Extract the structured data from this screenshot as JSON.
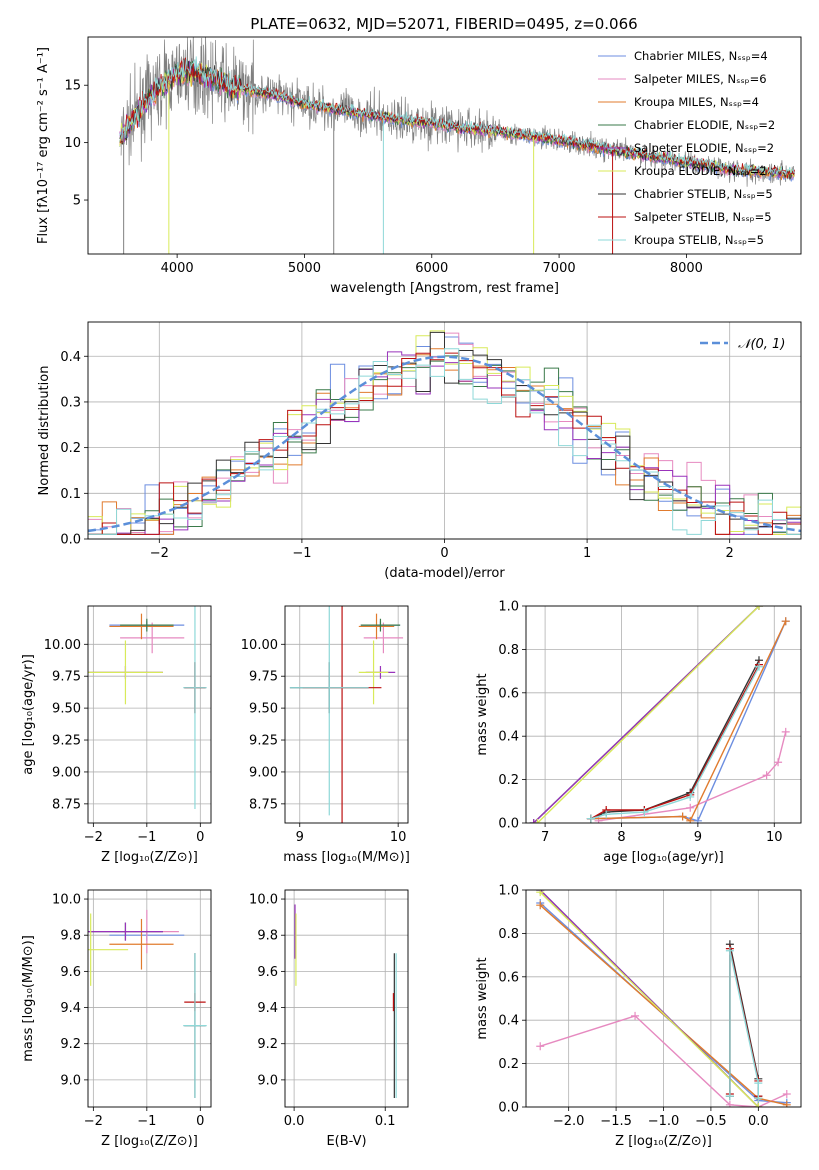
{
  "figure": {
    "title": "PLATE=0632, MJD=52071, FIBERID=0495, z=0.066"
  },
  "chart_data": [
    {
      "id": "spectrum",
      "type": "line",
      "xlabel": "wavelength [Angstrom, rest frame]",
      "ylabel": "Flux [fλ10⁻¹⁷ erg cm⁻² s⁻¹ A⁻¹]",
      "xlim": [
        3300,
        8900
      ],
      "ylim": [
        0.3,
        19.2
      ],
      "xticks": [
        4000,
        5000,
        6000,
        7000,
        8000
      ],
      "yticks": [
        5,
        10,
        15
      ],
      "grid": false,
      "legend_position": "top-right",
      "data_color": "#808080",
      "series": [
        {
          "name": "Chabrier MILES, Nₛₛₚ=4",
          "color": "#6c8ee0"
        },
        {
          "name": "Salpeter MILES, Nₛₛₚ=6",
          "color": "#e68ac0"
        },
        {
          "name": "Kroupa MILES, Nₛₛₚ=4",
          "color": "#e07b2e"
        },
        {
          "name": "Chabrier ELODIE, Nₛₛₚ=2",
          "color": "#3a7a4a"
        },
        {
          "name": "Salpeter ELODIE, Nₛₛₚ=2",
          "color": "#9933bb"
        },
        {
          "name": "Kroupa ELODIE, Nₛₛₚ=2",
          "color": "#d8ea5a"
        },
        {
          "name": "Chabrier STELIB, Nₛₛₚ=5",
          "color": "#333333"
        },
        {
          "name": "Salpeter STELIB, Nₛₛₚ=5",
          "color": "#bb1111"
        },
        {
          "name": "Kroupa STELIB, Nₛₛₚ=5",
          "color": "#8ed8d8"
        }
      ],
      "model_curve": {
        "x": [
          3550,
          3600,
          3700,
          3800,
          3900,
          4000,
          4100,
          4200,
          4300,
          4400,
          4500,
          4700,
          4900,
          5000,
          5200,
          5500,
          5800,
          6000,
          6200,
          6500,
          6800,
          7000,
          7300,
          7600,
          8000,
          8400,
          8800
        ],
        "y": [
          10.3,
          11.2,
          12.8,
          14.2,
          15.2,
          16.0,
          16.2,
          15.8,
          15.5,
          15.0,
          14.7,
          14.3,
          13.7,
          13.4,
          13.0,
          12.4,
          11.9,
          11.7,
          11.3,
          11.0,
          10.5,
          10.2,
          9.6,
          9.0,
          8.3,
          7.6,
          7.3
        ]
      },
      "absorption_spikes": [
        {
          "x": 3580,
          "y": 0.3,
          "color": "#808080"
        },
        {
          "x": 3935,
          "y": 0.3,
          "color": "#d8ea5a"
        },
        {
          "x": 5230,
          "y": 0.3,
          "color": "#808080"
        },
        {
          "x": 5620,
          "y": 0.3,
          "color": "#8ed8d8"
        },
        {
          "x": 6800,
          "y": 0.3,
          "color": "#d8ea5a"
        },
        {
          "x": 7420,
          "y": 0.3,
          "color": "#bb1111"
        }
      ]
    },
    {
      "id": "residual_histogram",
      "type": "line",
      "xlabel": "(data-model)/error",
      "ylabel": "Normed distribution",
      "xlim": [
        -2.5,
        2.5
      ],
      "ylim": [
        0,
        0.475
      ],
      "xticks": [
        -2,
        -1,
        0,
        1,
        2
      ],
      "yticks": [
        0.0,
        0.1,
        0.2,
        0.3,
        0.4
      ],
      "grid": true,
      "legend_position": "top-right",
      "legend": "𝒩(0, 1)",
      "gaussian_color": "#5b8fd9",
      "hist_colors": [
        "#6c8ee0",
        "#e68ac0",
        "#e07b2e",
        "#3a7a4a",
        "#9933bb",
        "#d8ea5a",
        "#333333",
        "#bb1111",
        "#8ed8d8"
      ]
    },
    {
      "id": "age_vs_Z",
      "type": "scatter",
      "xlabel": "Z [log₁₀(Z/Z⊙)]",
      "ylabel": "age  [log₁₀(age/yr)]",
      "xlim": [
        -2.1,
        0.2
      ],
      "ylim": [
        8.6,
        10.3
      ],
      "xticks": [
        -2,
        -1,
        0
      ],
      "yticks": [
        8.75,
        9.0,
        9.25,
        9.5,
        9.75,
        10.0
      ],
      "grid": true,
      "points": [
        {
          "x": -1.0,
          "y": 10.15,
          "xerr": 0.7,
          "yerr": 0.03,
          "color": "#6c8ee0"
        },
        {
          "x": -0.9,
          "y": 10.05,
          "xerr": 0.6,
          "yerr": 0.12,
          "color": "#e68ac0"
        },
        {
          "x": -1.1,
          "y": 10.14,
          "xerr": 0.6,
          "yerr": 0.1,
          "color": "#e07b2e"
        },
        {
          "x": -1.0,
          "y": 10.15,
          "xerr": 0.5,
          "yerr": 0.05,
          "color": "#3a7a4a"
        },
        {
          "x": -1.4,
          "y": 9.78,
          "xerr": 0.7,
          "yerr": 0.05,
          "color": "#9933bb"
        },
        {
          "x": -1.4,
          "y": 9.78,
          "xerr": 0.7,
          "yerr": 0.25,
          "color": "#d8ea5a"
        },
        {
          "x": -0.1,
          "y": 9.66,
          "xerr": 0.2,
          "yerr": 0.2,
          "color": "#333333"
        },
        {
          "x": -0.1,
          "y": 9.66,
          "xerr": 0.2,
          "yerr": 0.2,
          "color": "#bb1111"
        },
        {
          "x": -0.1,
          "y": 9.66,
          "xerr": 0.22,
          "yerr": 0.95,
          "color": "#8ed8d8"
        }
      ]
    },
    {
      "id": "age_vs_mass",
      "type": "scatter",
      "xlabel": "mass [log₁₀(M/M⊙)]",
      "ylabel": "",
      "xlim": [
        8.85,
        10.1
      ],
      "ylim": [
        8.6,
        10.3
      ],
      "xticks": [
        9,
        10
      ],
      "yticks": [
        8.75,
        9.0,
        9.25,
        9.5,
        9.75,
        10.0
      ],
      "grid": true,
      "points": [
        {
          "x": 9.82,
          "y": 10.15,
          "xerr": 0.2,
          "yerr": 0.03,
          "color": "#6c8ee0"
        },
        {
          "x": 9.85,
          "y": 10.05,
          "xerr": 0.2,
          "yerr": 0.12,
          "color": "#e68ac0"
        },
        {
          "x": 9.78,
          "y": 10.14,
          "xerr": 0.18,
          "yerr": 0.1,
          "color": "#e07b2e"
        },
        {
          "x": 9.82,
          "y": 10.15,
          "xerr": 0.2,
          "yerr": 0.05,
          "color": "#3a7a4a"
        },
        {
          "x": 9.82,
          "y": 9.78,
          "xerr": 0.15,
          "yerr": 0.05,
          "color": "#9933bb"
        },
        {
          "x": 9.75,
          "y": 9.78,
          "xerr": 0.15,
          "yerr": 0.25,
          "color": "#d8ea5a"
        },
        {
          "x": 9.3,
          "y": 9.66,
          "xerr": 0.4,
          "yerr": 0.2,
          "color": "#333333"
        },
        {
          "x": 9.43,
          "y": 9.66,
          "xerr": 0.4,
          "yerr": 1.1,
          "color": "#bb1111"
        },
        {
          "x": 9.3,
          "y": 9.66,
          "xerr": 0.4,
          "yerr": 1.0,
          "color": "#8ed8d8"
        }
      ]
    },
    {
      "id": "massweight_vs_age",
      "type": "line",
      "xlabel": "age  [log₁₀(age/yr)]",
      "ylabel": "mass weight",
      "xlim": [
        6.75,
        10.35
      ],
      "ylim": [
        0,
        1.0
      ],
      "xticks": [
        7,
        8,
        9,
        10
      ],
      "yticks": [
        0.0,
        0.2,
        0.4,
        0.6,
        0.8,
        1.0
      ],
      "grid": true,
      "series": [
        {
          "name": "Chabrier MILES",
          "color": "#6c8ee0",
          "x": [
            7.6,
            8.8,
            9.0,
            10.15
          ],
          "y": [
            0.02,
            0.03,
            0.01,
            0.93
          ]
        },
        {
          "name": "Salpeter MILES",
          "color": "#e68ac0",
          "x": [
            7.7,
            8.9,
            9.9,
            10.05,
            10.15
          ],
          "y": [
            0.01,
            0.07,
            0.22,
            0.28,
            0.42
          ]
        },
        {
          "name": "Kroupa MILES",
          "color": "#e07b2e",
          "x": [
            7.6,
            8.8,
            8.9,
            10.15
          ],
          "y": [
            0.02,
            0.03,
            0.01,
            0.93
          ]
        },
        {
          "name": "Chabrier ELODIE",
          "color": "#3a7a4a",
          "x": [
            6.85,
            9.8
          ],
          "y": [
            0.0,
            1.0
          ]
        },
        {
          "name": "Salpeter ELODIE",
          "color": "#9933bb",
          "x": [
            6.85,
            9.8
          ],
          "y": [
            0.0,
            1.0
          ]
        },
        {
          "name": "Kroupa ELODIE",
          "color": "#d8ea5a",
          "x": [
            6.9,
            9.8
          ],
          "y": [
            0.0,
            1.0
          ]
        },
        {
          "name": "Chabrier STELIB",
          "color": "#333333",
          "x": [
            7.6,
            7.8,
            8.3,
            8.9,
            9.8
          ],
          "y": [
            0.02,
            0.05,
            0.06,
            0.14,
            0.75
          ]
        },
        {
          "name": "Salpeter STELIB",
          "color": "#bb1111",
          "x": [
            7.6,
            7.8,
            8.3,
            8.9,
            9.8
          ],
          "y": [
            0.02,
            0.06,
            0.06,
            0.13,
            0.73
          ]
        },
        {
          "name": "Kroupa STELIB",
          "color": "#8ed8d8",
          "x": [
            7.6,
            7.8,
            8.3,
            8.9,
            9.8
          ],
          "y": [
            0.02,
            0.04,
            0.05,
            0.12,
            0.72
          ]
        }
      ]
    },
    {
      "id": "mass_vs_Z",
      "type": "scatter",
      "xlabel": "Z [log₁₀(Z/Z⊙)]",
      "ylabel": "mass [log₁₀(M/M⊙)]",
      "xlim": [
        -2.1,
        0.2
      ],
      "ylim": [
        8.85,
        10.05
      ],
      "xticks": [
        -2,
        -1,
        0
      ],
      "yticks": [
        9.0,
        9.2,
        9.4,
        9.6,
        9.8,
        10.0
      ],
      "grid": true,
      "points": [
        {
          "x": -1.0,
          "y": 9.8,
          "xerr": 0.7,
          "yerr": 0.03,
          "color": "#6c8ee0"
        },
        {
          "x": -1.0,
          "y": 9.82,
          "xerr": 0.6,
          "yerr": 0.12,
          "color": "#e68ac0"
        },
        {
          "x": -1.1,
          "y": 9.75,
          "xerr": 0.6,
          "yerr": 0.14,
          "color": "#e07b2e"
        },
        {
          "x": -1.4,
          "y": 9.82,
          "xerr": 0.7,
          "yerr": 0.05,
          "color": "#3a7a4a"
        },
        {
          "x": -1.4,
          "y": 9.82,
          "xerr": 0.7,
          "yerr": 0.05,
          "color": "#9933bb"
        },
        {
          "x": -2.05,
          "y": 9.72,
          "xerr": 0.7,
          "yerr": 0.2,
          "color": "#d8ea5a"
        },
        {
          "x": -0.1,
          "y": 9.3,
          "xerr": 0.2,
          "yerr": 0.4,
          "color": "#333333"
        },
        {
          "x": -0.1,
          "y": 9.43,
          "xerr": 0.2,
          "yerr": 0.05,
          "color": "#bb1111"
        },
        {
          "x": -0.1,
          "y": 9.3,
          "xerr": 0.22,
          "yerr": 0.4,
          "color": "#8ed8d8"
        }
      ]
    },
    {
      "id": "mass_vs_ebv",
      "type": "scatter",
      "xlabel": "E(B-V)",
      "ylabel": "",
      "xlim": [
        -0.01,
        0.125
      ],
      "ylim": [
        8.85,
        10.05
      ],
      "xticks": [
        0.0,
        0.1
      ],
      "yticks": [
        9.0,
        9.2,
        9.4,
        9.6,
        9.8,
        10.0
      ],
      "grid": true,
      "points": [
        {
          "x": 0.001,
          "y": 9.8,
          "xerr": 0.0,
          "yerr": 0.12,
          "color": "#6c8ee0"
        },
        {
          "x": 0.001,
          "y": 9.82,
          "xerr": 0.0,
          "yerr": 0.15,
          "color": "#9933bb"
        },
        {
          "x": 0.002,
          "y": 9.72,
          "xerr": 0.0,
          "yerr": 0.2,
          "color": "#d8ea5a"
        },
        {
          "x": 0.11,
          "y": 9.3,
          "xerr": 0.0,
          "yerr": 0.4,
          "color": "#333333"
        },
        {
          "x": 0.109,
          "y": 9.43,
          "xerr": 0.0,
          "yerr": 0.05,
          "color": "#bb1111"
        },
        {
          "x": 0.112,
          "y": 9.3,
          "xerr": 0.0,
          "yerr": 0.4,
          "color": "#8ed8d8"
        }
      ]
    },
    {
      "id": "massweight_vs_Z",
      "type": "line",
      "xlabel": "Z [log₁₀(Z/Z⊙)]",
      "ylabel": "mass weight",
      "xlim": [
        -2.45,
        0.45
      ],
      "ylim": [
        0,
        1.0
      ],
      "xticks": [
        -2.0,
        -1.5,
        -1.0,
        -0.5,
        0.0
      ],
      "yticks": [
        0.0,
        0.2,
        0.4,
        0.6,
        0.8,
        1.0
      ],
      "grid": true,
      "series": [
        {
          "name": "Chabrier MILES",
          "color": "#6c8ee0",
          "x": [
            -2.3,
            0.0,
            0.3
          ],
          "y": [
            0.94,
            0.03,
            0.02
          ]
        },
        {
          "name": "Salpeter MILES",
          "color": "#e68ac0",
          "x": [
            -2.3,
            -1.3,
            -0.3,
            0.0,
            0.3
          ],
          "y": [
            0.28,
            0.42,
            0.01,
            0.0,
            0.06
          ]
        },
        {
          "name": "Kroupa MILES",
          "color": "#e07b2e",
          "x": [
            -2.3,
            0.0,
            0.3
          ],
          "y": [
            0.93,
            0.04,
            0.01
          ]
        },
        {
          "name": "Chabrier ELODIE",
          "color": "#3a7a4a",
          "x": [
            -2.3,
            0.0
          ],
          "y": [
            1.0,
            0.0
          ]
        },
        {
          "name": "Salpeter ELODIE",
          "color": "#9933bb",
          "x": [
            -2.3,
            0.0
          ],
          "y": [
            1.0,
            0.0
          ]
        },
        {
          "name": "Kroupa ELODIE",
          "color": "#d8ea5a",
          "x": [
            -2.3,
            0.0
          ],
          "y": [
            0.99,
            0.0
          ]
        },
        {
          "name": "Chabrier STELIB",
          "color": "#333333",
          "x": [
            -0.3,
            -0.3,
            0.0,
            0.0
          ],
          "y": [
            0.05,
            0.75,
            0.13,
            0.05
          ]
        },
        {
          "name": "Salpeter STELIB",
          "color": "#bb1111",
          "x": [
            -0.3,
            -0.3,
            0.0,
            0.0
          ],
          "y": [
            0.06,
            0.73,
            0.12,
            0.05
          ]
        },
        {
          "name": "Kroupa STELIB",
          "color": "#8ed8d8",
          "x": [
            -0.3,
            -0.3,
            0.0,
            0.0
          ],
          "y": [
            0.05,
            0.72,
            0.11,
            0.04
          ]
        }
      ]
    }
  ]
}
